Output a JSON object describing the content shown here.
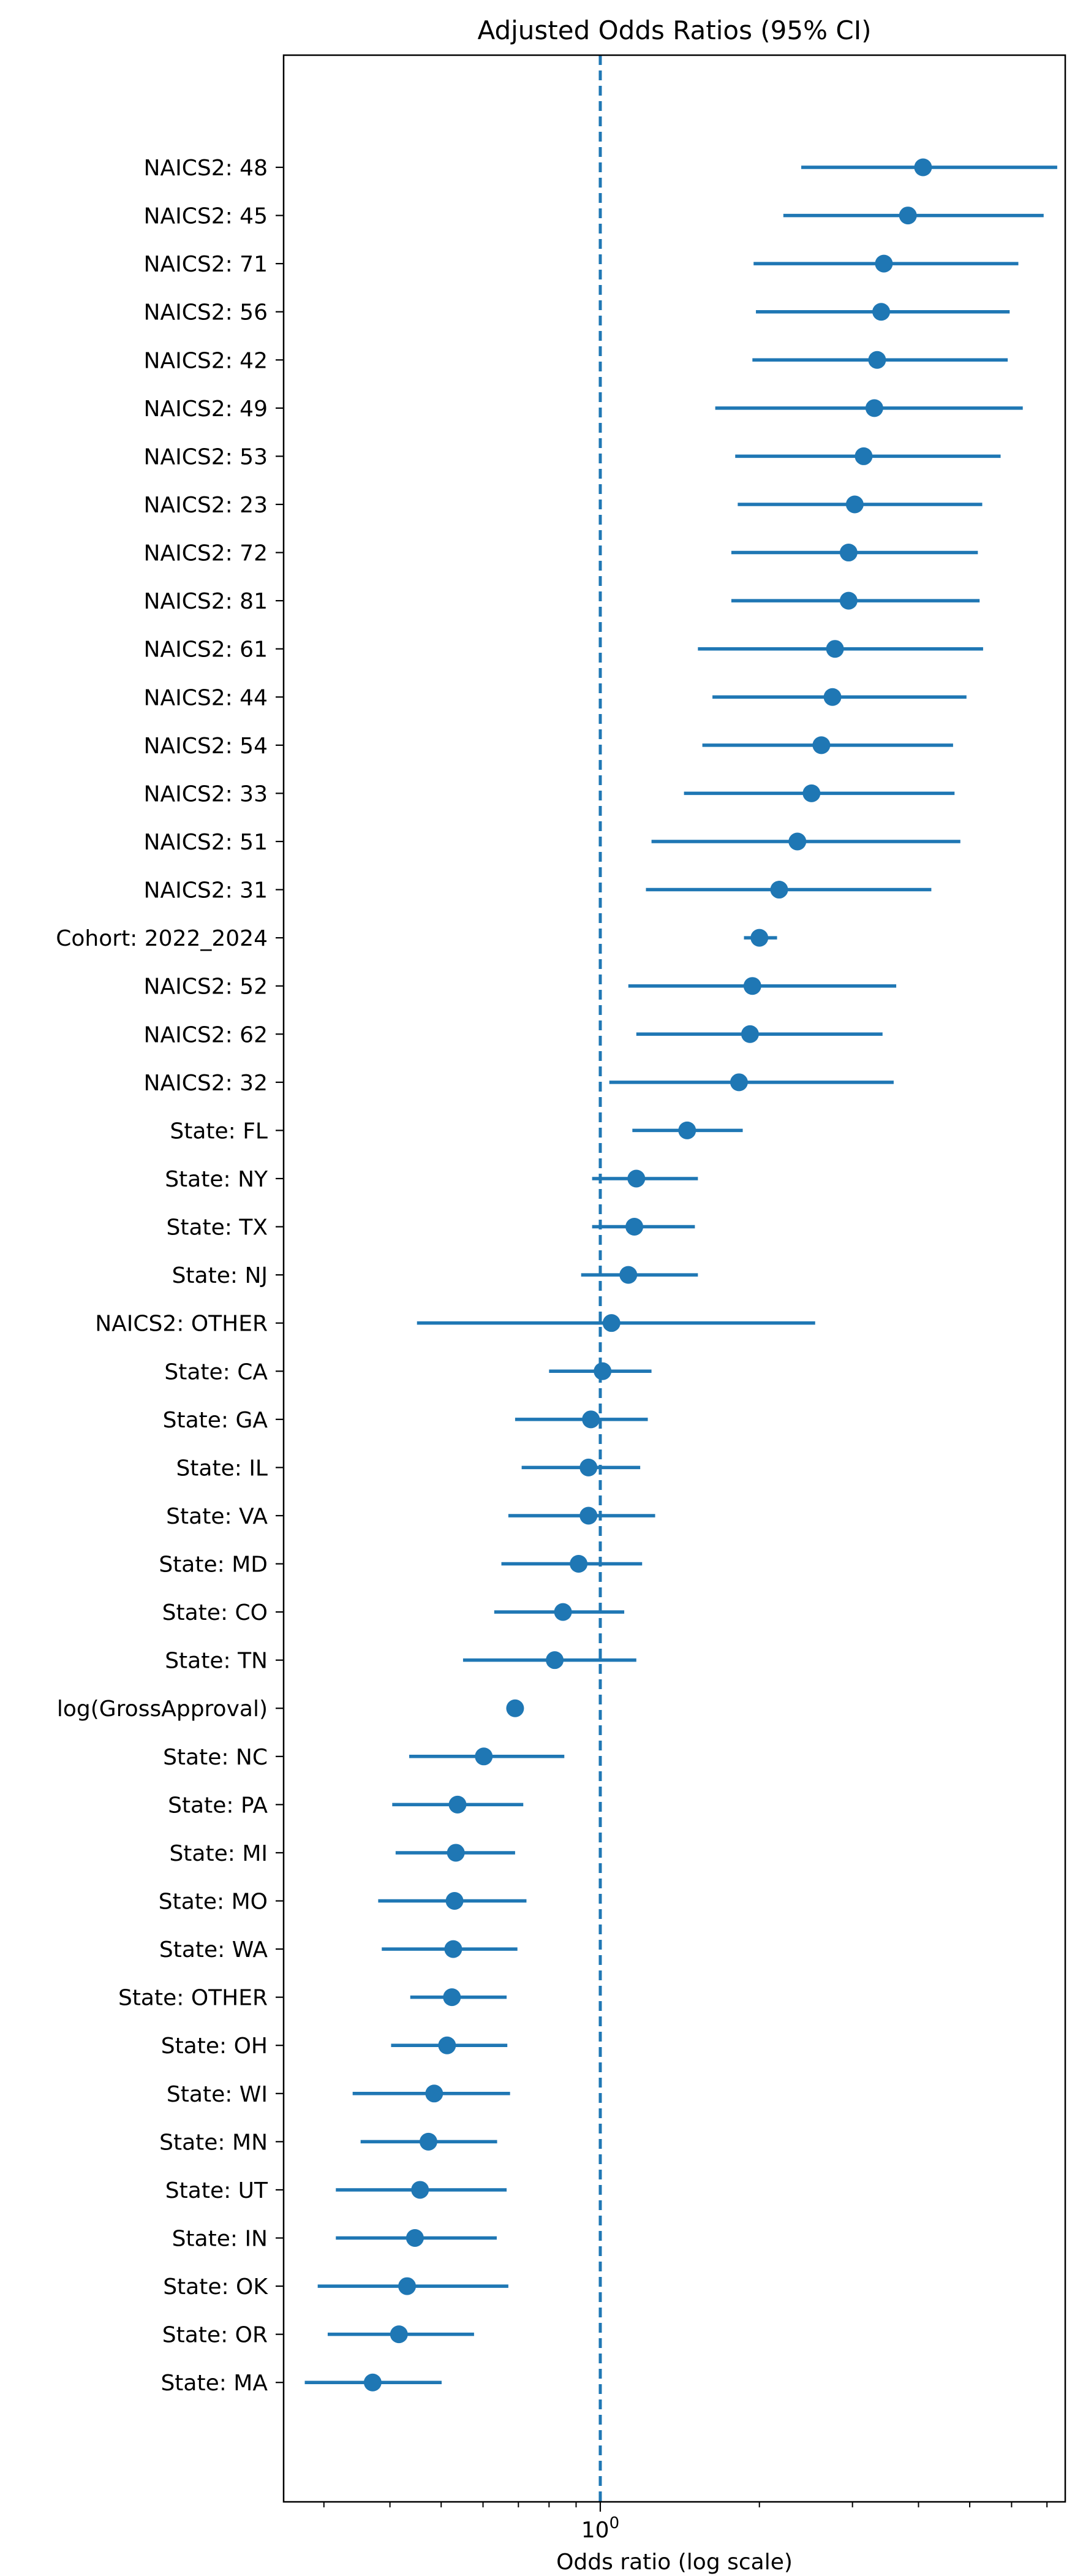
{
  "chart_data": {
    "type": "forest",
    "title": "Adjusted Odds Ratios (95% CI)",
    "xlabel": "Odds ratio (log scale)",
    "ylabel": "",
    "x_scale": "log",
    "xlim": [
      0.2517,
      7.58
    ],
    "x_ticks": [
      {
        "value": 1,
        "label": "10^0"
      }
    ],
    "reference_line": {
      "value": 1,
      "style": "dashed"
    },
    "grid": false,
    "color": "#1f77b4",
    "rows": [
      {
        "label": "NAICS2: 48",
        "or": 4.08,
        "lo": 2.4,
        "hi": 7.32
      },
      {
        "label": "NAICS2: 45",
        "or": 3.82,
        "lo": 2.22,
        "hi": 6.9
      },
      {
        "label": "NAICS2: 71",
        "or": 3.44,
        "lo": 1.95,
        "hi": 6.18
      },
      {
        "label": "NAICS2: 56",
        "or": 3.4,
        "lo": 1.97,
        "hi": 5.95
      },
      {
        "label": "NAICS2: 42",
        "or": 3.34,
        "lo": 1.94,
        "hi": 5.9
      },
      {
        "label": "NAICS2: 49",
        "or": 3.3,
        "lo": 1.65,
        "hi": 6.3
      },
      {
        "label": "NAICS2: 53",
        "or": 3.15,
        "lo": 1.8,
        "hi": 5.72
      },
      {
        "label": "NAICS2: 23",
        "or": 3.03,
        "lo": 1.82,
        "hi": 5.28
      },
      {
        "label": "NAICS2: 72",
        "or": 2.95,
        "lo": 1.77,
        "hi": 5.18
      },
      {
        "label": "NAICS2: 81",
        "or": 2.95,
        "lo": 1.77,
        "hi": 5.22
      },
      {
        "label": "NAICS2: 61",
        "or": 2.78,
        "lo": 1.53,
        "hi": 5.3
      },
      {
        "label": "NAICS2: 44",
        "or": 2.75,
        "lo": 1.63,
        "hi": 4.93
      },
      {
        "label": "NAICS2: 54",
        "or": 2.62,
        "lo": 1.56,
        "hi": 4.65
      },
      {
        "label": "NAICS2: 33",
        "or": 2.51,
        "lo": 1.44,
        "hi": 4.68
      },
      {
        "label": "NAICS2: 51",
        "or": 2.36,
        "lo": 1.25,
        "hi": 4.8
      },
      {
        "label": "NAICS2: 31",
        "or": 2.18,
        "lo": 1.22,
        "hi": 4.23
      },
      {
        "label": "Cohort: 2022_2024",
        "or": 2.0,
        "lo": 1.87,
        "hi": 2.16
      },
      {
        "label": "NAICS2: 52",
        "or": 1.94,
        "lo": 1.13,
        "hi": 3.63
      },
      {
        "label": "NAICS2: 62",
        "or": 1.92,
        "lo": 1.17,
        "hi": 3.42
      },
      {
        "label": "NAICS2: 32",
        "or": 1.83,
        "lo": 1.04,
        "hi": 3.59
      },
      {
        "label": "State: FL",
        "or": 1.46,
        "lo": 1.15,
        "hi": 1.86
      },
      {
        "label": "State: NY",
        "or": 1.17,
        "lo": 0.965,
        "hi": 1.53
      },
      {
        "label": "State: TX",
        "or": 1.16,
        "lo": 0.965,
        "hi": 1.51
      },
      {
        "label": "State: NJ",
        "or": 1.13,
        "lo": 0.92,
        "hi": 1.53
      },
      {
        "label": "NAICS2: OTHER",
        "or": 1.05,
        "lo": 0.45,
        "hi": 2.55
      },
      {
        "label": "State: CA",
        "or": 1.01,
        "lo": 0.8,
        "hi": 1.25
      },
      {
        "label": "State: GA",
        "or": 0.96,
        "lo": 0.69,
        "hi": 1.23
      },
      {
        "label": "State: IL",
        "or": 0.95,
        "lo": 0.71,
        "hi": 1.19
      },
      {
        "label": "State: VA",
        "or": 0.95,
        "lo": 0.67,
        "hi": 1.27
      },
      {
        "label": "State: MD",
        "or": 0.91,
        "lo": 0.65,
        "hi": 1.2
      },
      {
        "label": "State: CO",
        "or": 0.85,
        "lo": 0.63,
        "hi": 1.11
      },
      {
        "label": "State: TN",
        "or": 0.82,
        "lo": 0.55,
        "hi": 1.17
      },
      {
        "label": "log(GrossApproval)",
        "or": 0.69,
        "lo": 0.685,
        "hi": 0.695
      },
      {
        "label": "State: NC",
        "or": 0.602,
        "lo": 0.435,
        "hi": 0.855
      },
      {
        "label": "State: PA",
        "or": 0.537,
        "lo": 0.404,
        "hi": 0.715
      },
      {
        "label": "State: MI",
        "or": 0.533,
        "lo": 0.41,
        "hi": 0.69
      },
      {
        "label": "State: MO",
        "or": 0.53,
        "lo": 0.38,
        "hi": 0.725
      },
      {
        "label": "State: WA",
        "or": 0.527,
        "lo": 0.386,
        "hi": 0.697
      },
      {
        "label": "State: OTHER",
        "or": 0.524,
        "lo": 0.437,
        "hi": 0.665
      },
      {
        "label": "State: OH",
        "or": 0.513,
        "lo": 0.402,
        "hi": 0.667
      },
      {
        "label": "State: WI",
        "or": 0.485,
        "lo": 0.34,
        "hi": 0.675
      },
      {
        "label": "State: MN",
        "or": 0.473,
        "lo": 0.352,
        "hi": 0.638
      },
      {
        "label": "State: UT",
        "or": 0.456,
        "lo": 0.316,
        "hi": 0.665
      },
      {
        "label": "State: IN",
        "or": 0.446,
        "lo": 0.316,
        "hi": 0.637
      },
      {
        "label": "State: OK",
        "or": 0.431,
        "lo": 0.292,
        "hi": 0.67
      },
      {
        "label": "State: OR",
        "or": 0.416,
        "lo": 0.305,
        "hi": 0.577
      },
      {
        "label": "State: MA",
        "or": 0.371,
        "lo": 0.276,
        "hi": 0.501
      }
    ]
  }
}
